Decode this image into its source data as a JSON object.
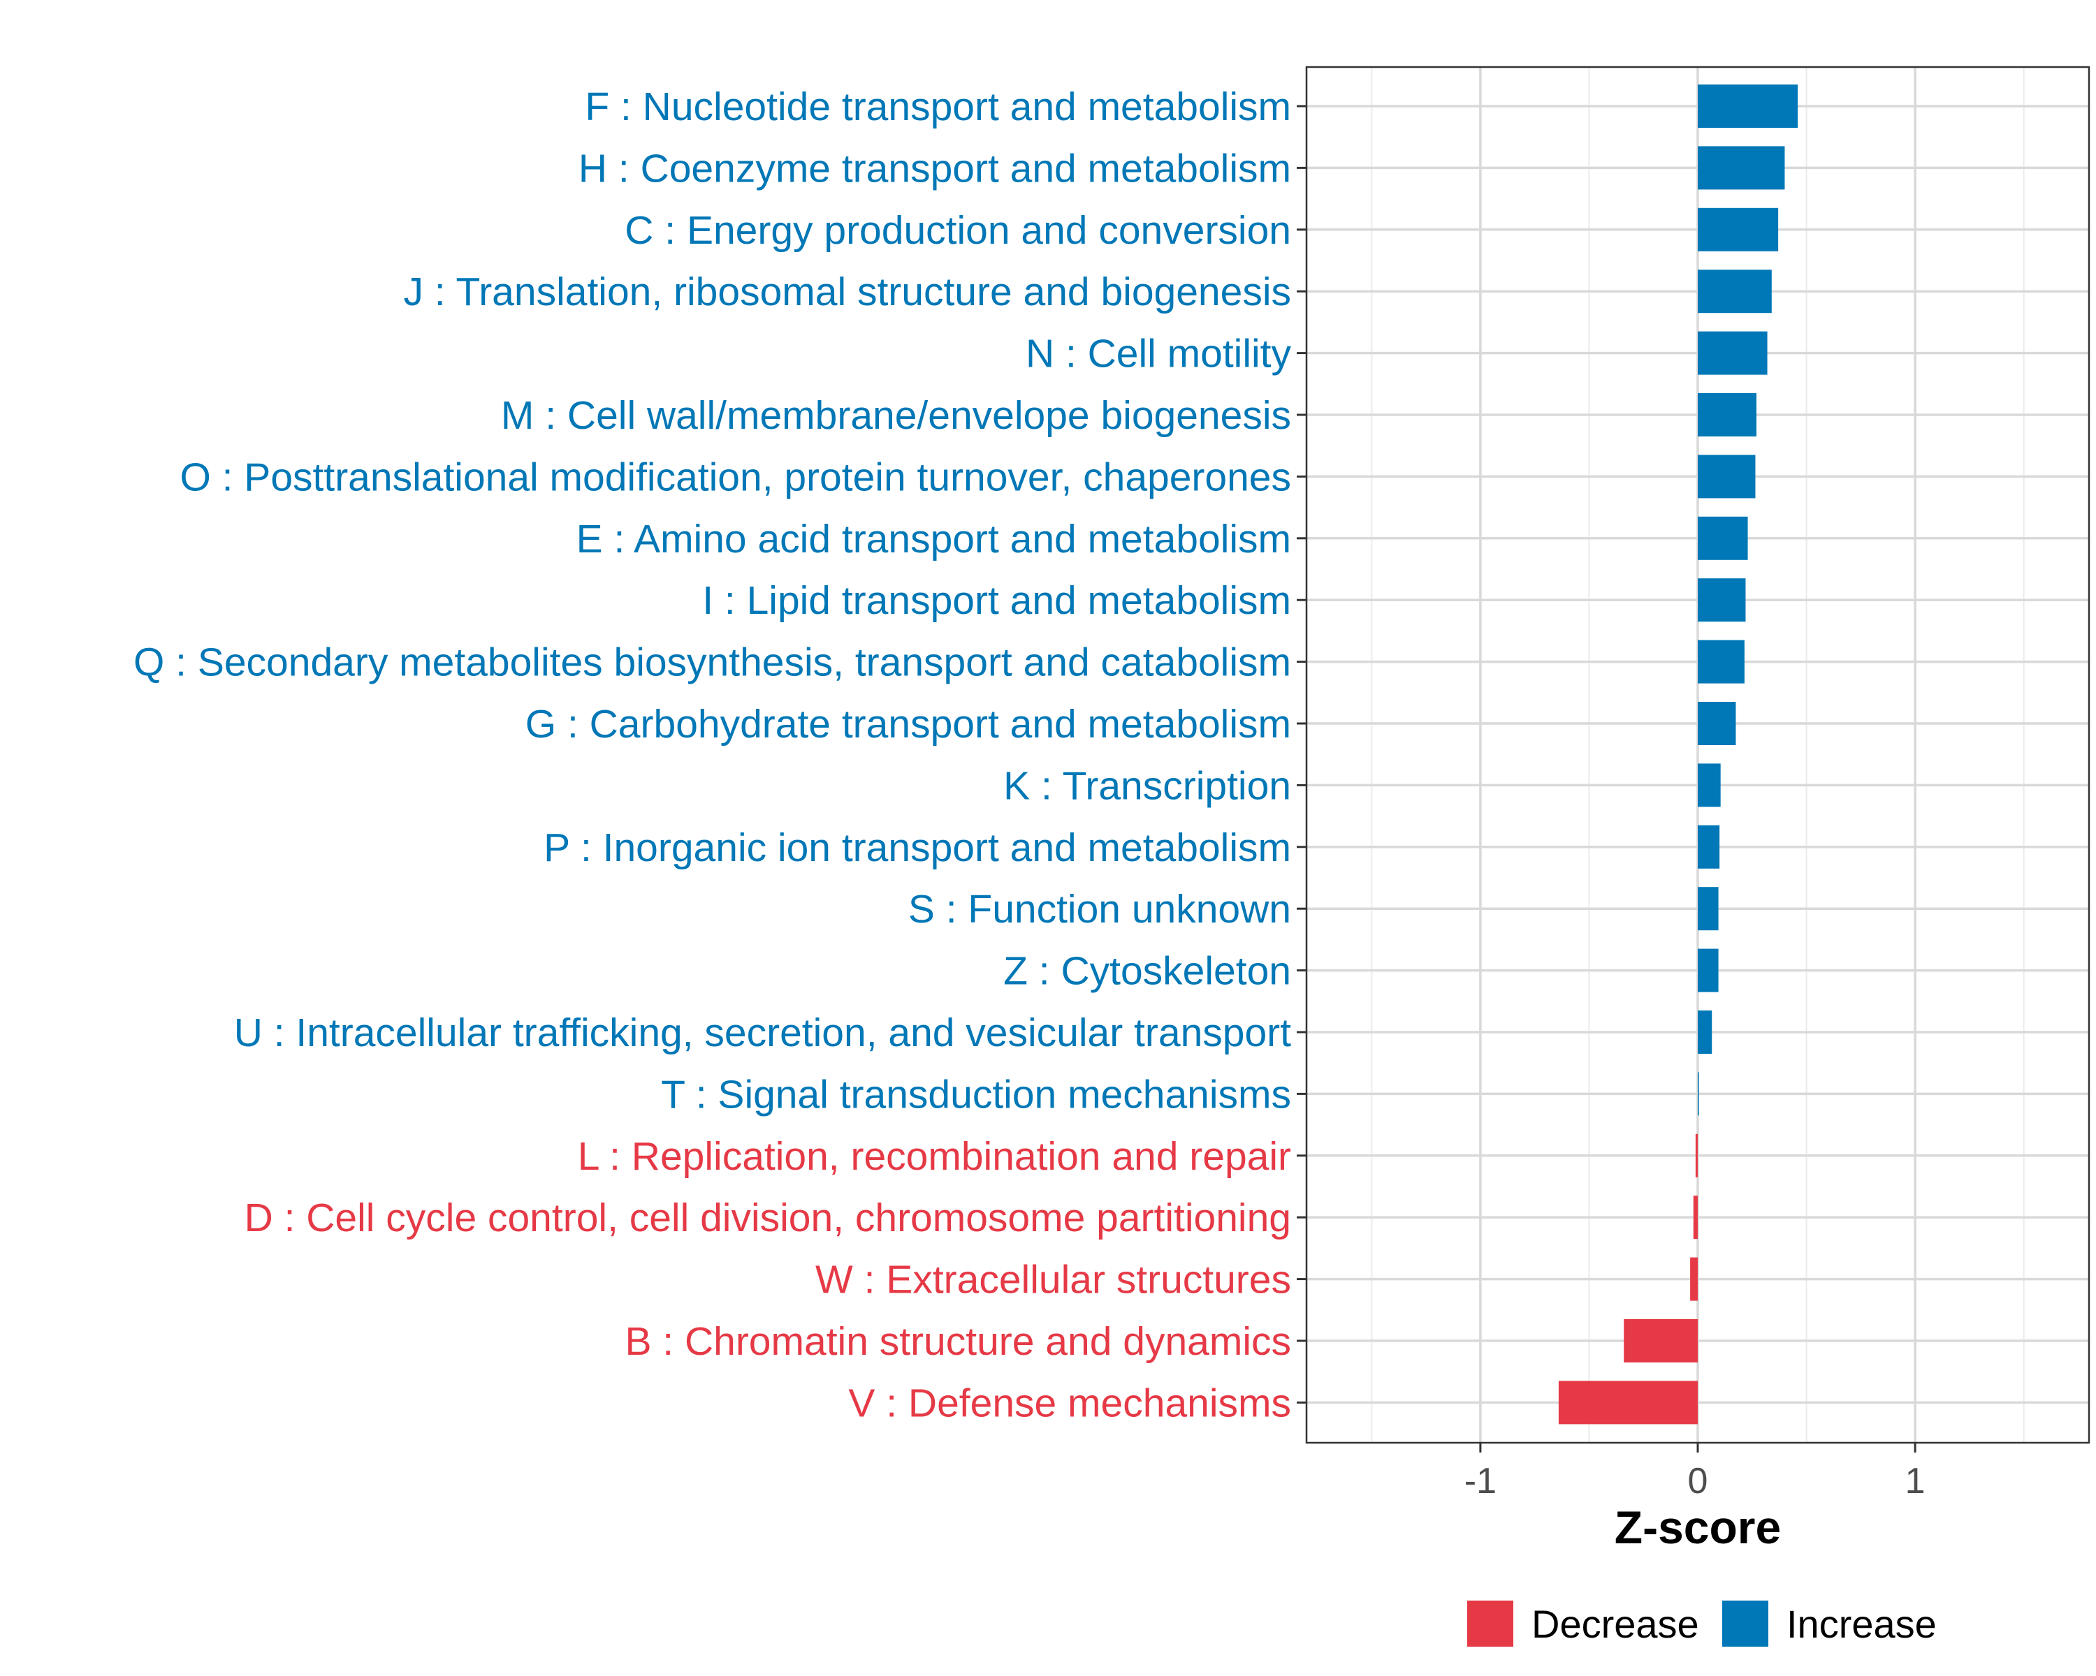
{
  "chart_data": {
    "type": "bar",
    "orientation": "horizontal",
    "xlabel": "Z-score",
    "ylabel": "",
    "xlim": [
      -1.8,
      1.8
    ],
    "x_ticks": [
      -1,
      0,
      1
    ],
    "x_tick_labels": [
      "-1",
      "0",
      "1"
    ],
    "grid": true,
    "legend_position": "bottom",
    "legend": [
      {
        "name": "Decrease",
        "color": "#e63946"
      },
      {
        "name": "Increase",
        "color": "#0077b6"
      }
    ],
    "categories": [
      "F : Nucleotide transport and metabolism",
      "H : Coenzyme transport and metabolism",
      "C : Energy production and conversion",
      "J : Translation, ribosomal structure and biogenesis",
      "N : Cell motility",
      "M : Cell wall/membrane/envelope biogenesis",
      "O : Posttranslational modification, protein turnover, chaperones",
      "E : Amino acid transport and metabolism",
      "I : Lipid transport and metabolism",
      "Q : Secondary metabolites biosynthesis, transport and catabolism",
      "G : Carbohydrate transport and metabolism",
      "K : Transcription",
      "P : Inorganic ion transport and metabolism",
      "S : Function unknown",
      "Z : Cytoskeleton",
      "U : Intracellular trafficking, secretion, and vesicular transport",
      "T : Signal transduction mechanisms",
      "L : Replication, recombination and repair",
      "D : Cell cycle control, cell division, chromosome partitioning",
      "W : Extracellular structures",
      "B : Chromatin structure and dynamics",
      "V : Defense mechanisms"
    ],
    "values": [
      0.46,
      0.4,
      0.37,
      0.34,
      0.32,
      0.27,
      0.265,
      0.23,
      0.22,
      0.215,
      0.175,
      0.105,
      0.1,
      0.095,
      0.095,
      0.065,
      0.005,
      -0.01,
      -0.02,
      -0.035,
      -0.34,
      -0.64
    ],
    "groups": [
      "Increase",
      "Increase",
      "Increase",
      "Increase",
      "Increase",
      "Increase",
      "Increase",
      "Increase",
      "Increase",
      "Increase",
      "Increase",
      "Increase",
      "Increase",
      "Increase",
      "Increase",
      "Increase",
      "Increase",
      "Decrease",
      "Decrease",
      "Decrease",
      "Decrease",
      "Decrease"
    ]
  }
}
